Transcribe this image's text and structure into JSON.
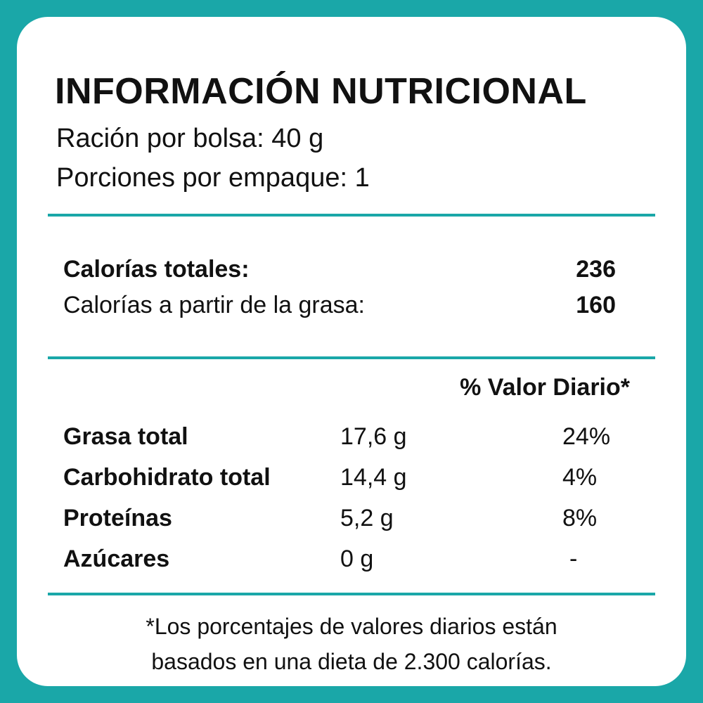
{
  "label": {
    "title": "INFORMACIÓN NUTRICIONAL",
    "serving_size": "Ración por bolsa: 40 g",
    "servings_per_package": "Porciones por empaque: 1",
    "calories": {
      "total_label": "Calorías totales:",
      "total_value": "236",
      "fat_label": "Calorías a partir de la grasa:",
      "fat_value": "160"
    },
    "daily_value_header": "% Valor Diario*",
    "nutrients": [
      {
        "name": "Grasa total",
        "amount": "17,6 g",
        "daily_value": "24%"
      },
      {
        "name": "Carbohidrato total",
        "amount": "14,4 g",
        "daily_value": "4%"
      },
      {
        "name": "Proteínas",
        "amount": "5,2 g",
        "daily_value": "8%"
      },
      {
        "name": "Azúcares",
        "amount": "0 g",
        "daily_value": "-"
      }
    ],
    "footnote": [
      "*Los porcentajes de valores diarios están",
      "basados en una dieta de 2.300 calorías."
    ]
  },
  "colors": {
    "accent": "#1aa7a8",
    "card_background": "#ffffff",
    "text": "#111111"
  }
}
